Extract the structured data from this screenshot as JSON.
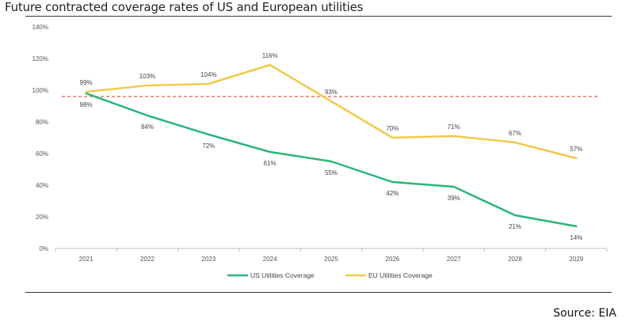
{
  "title": "Future contracted coverage rates of US and European utilities",
  "source": "Source: EIA",
  "chart_data": {
    "type": "line",
    "title": "Future contracted coverage rates of US and European utilities",
    "xlabel": "",
    "ylabel": "",
    "categories": [
      "2021",
      "2022",
      "2023",
      "2024",
      "2025",
      "2026",
      "2027",
      "2028",
      "2029"
    ],
    "ylim": [
      0,
      140
    ],
    "yticks": [
      "0%",
      "20%",
      "40%",
      "60%",
      "80%",
      "100%",
      "120%",
      "140%"
    ],
    "grid": false,
    "legend": "bottom",
    "reference_line": {
      "value": 96,
      "style": "dashed",
      "color": "#d9312b"
    },
    "series": [
      {
        "name": "US Utilities Coverage",
        "color": "#2bb57a",
        "values": [
          98,
          84,
          72,
          61,
          55,
          42,
          39,
          21,
          14
        ],
        "labels": [
          "98%",
          "84%",
          "72%",
          "61%",
          "55%",
          "42%",
          "39%",
          "21%",
          "14%"
        ]
      },
      {
        "name": "EU Utilities Coverage",
        "color": "#f2c94c",
        "values": [
          99,
          103,
          104,
          116,
          93,
          70,
          71,
          67,
          57
        ],
        "labels": [
          "99%",
          "103%",
          "104%",
          "116%",
          "93%",
          "70%",
          "71%",
          "67%",
          "57%"
        ]
      }
    ]
  }
}
